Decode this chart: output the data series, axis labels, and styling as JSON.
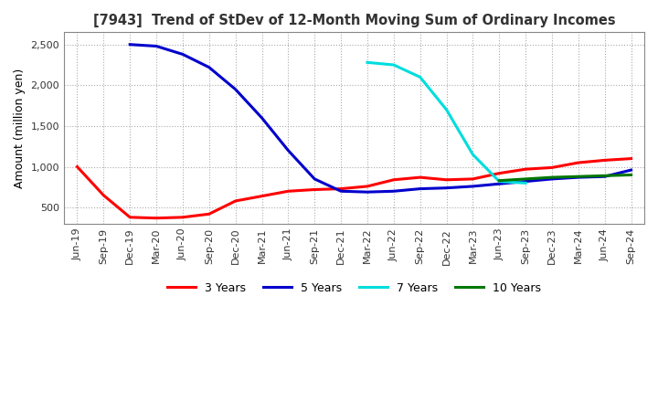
{
  "title": "[7943]  Trend of StDev of 12-Month Moving Sum of Ordinary Incomes",
  "ylabel": "Amount (million yen)",
  "ylim": [
    300,
    2650
  ],
  "yticks": [
    500,
    1000,
    1500,
    2000,
    2500
  ],
  "background_color": "#ffffff",
  "grid_color": "#aaaaaa",
  "series": {
    "3years": {
      "color": "#ff0000",
      "label": "3 Years",
      "x": [
        "Jun-19",
        "Sep-19",
        "Dec-19",
        "Mar-20",
        "Jun-20",
        "Sep-20",
        "Dec-20",
        "Mar-21",
        "Jun-21",
        "Sep-21",
        "Dec-21",
        "Mar-22",
        "Jun-22",
        "Sep-22",
        "Dec-22",
        "Mar-23",
        "Jun-23",
        "Sep-23",
        "Dec-23",
        "Mar-24",
        "Jun-24",
        "Sep-24"
      ],
      "y": [
        1000,
        650,
        380,
        370,
        380,
        420,
        580,
        640,
        700,
        720,
        730,
        760,
        840,
        870,
        840,
        850,
        920,
        970,
        990,
        1050,
        1080,
        1100
      ]
    },
    "5years": {
      "color": "#0000cc",
      "label": "5 Years",
      "x": [
        "Dec-19",
        "Mar-20",
        "Jun-20",
        "Sep-20",
        "Dec-20",
        "Mar-21",
        "Jun-21",
        "Sep-21",
        "Dec-21",
        "Mar-22",
        "Jun-22",
        "Sep-22",
        "Dec-22",
        "Mar-23",
        "Jun-23",
        "Sep-23",
        "Dec-23",
        "Mar-24",
        "Jun-24",
        "Sep-24"
      ],
      "y": [
        2500,
        2480,
        2380,
        2220,
        1950,
        1600,
        1200,
        850,
        700,
        690,
        700,
        730,
        740,
        760,
        790,
        820,
        850,
        870,
        880,
        960
      ]
    },
    "7years": {
      "color": "#00dddd",
      "label": "7 Years",
      "x": [
        "Mar-22",
        "Jun-22",
        "Sep-22",
        "Dec-22",
        "Mar-23",
        "Jun-23",
        "Sep-23"
      ],
      "y": [
        2280,
        2250,
        2100,
        1700,
        1150,
        820,
        800
      ]
    },
    "10years": {
      "color": "#007700",
      "label": "10 Years",
      "x": [
        "Jun-23",
        "Sep-23",
        "Dec-23",
        "Mar-24",
        "Jun-24",
        "Sep-24"
      ],
      "y": [
        830,
        850,
        870,
        880,
        890,
        900
      ]
    }
  },
  "xtick_labels": [
    "Jun-19",
    "Sep-19",
    "Dec-19",
    "Mar-20",
    "Jun-20",
    "Sep-20",
    "Dec-20",
    "Mar-21",
    "Jun-21",
    "Sep-21",
    "Dec-21",
    "Mar-22",
    "Jun-22",
    "Sep-22",
    "Dec-22",
    "Mar-23",
    "Jun-23",
    "Sep-23",
    "Dec-23",
    "Mar-24",
    "Jun-24",
    "Sep-24"
  ]
}
